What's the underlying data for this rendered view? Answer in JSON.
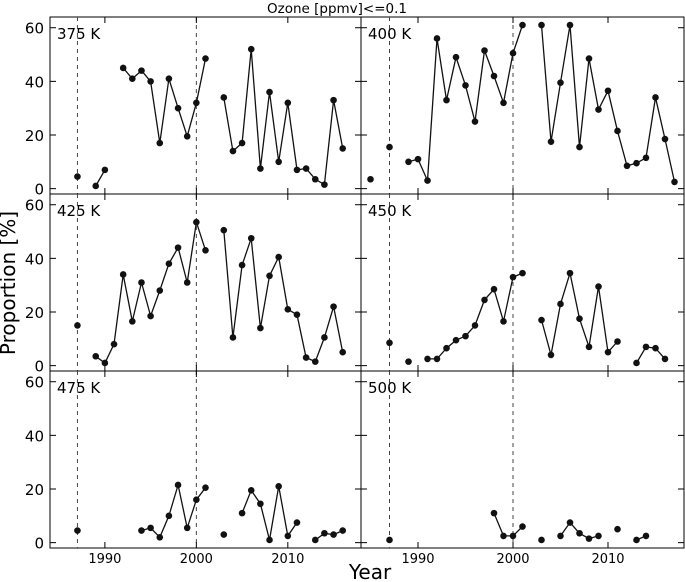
{
  "figure": {
    "title": "Ozone [ppmv]<=0.1",
    "xlabel": "Year",
    "ylabel": "Proportion [%]"
  },
  "chart_data": [
    {
      "type": "line",
      "label": "375 K",
      "xlim": [
        1984,
        2018
      ],
      "ylim": [
        -2,
        64
      ],
      "x_ticks": [
        1990,
        2000,
        2010
      ],
      "y_ticks": [
        0,
        20,
        40,
        60
      ],
      "vlines": [
        1987,
        2000
      ],
      "x": [
        1987,
        null,
        1989,
        1990,
        null,
        1992,
        1993,
        1994,
        1995,
        1996,
        1997,
        1998,
        1999,
        2000,
        2001,
        null,
        2003,
        2004,
        2005,
        2006,
        2007,
        2008,
        2009,
        2010,
        2011,
        2012,
        2013,
        2014,
        2015,
        2016
      ],
      "y": [
        4.5,
        null,
        1,
        7,
        null,
        45,
        41,
        44,
        40,
        17,
        41,
        30,
        19.5,
        32,
        48.5,
        null,
        34,
        14,
        17,
        52,
        7.5,
        36,
        10,
        32,
        7,
        7.5,
        3.5,
        1.5,
        33,
        15
      ]
    },
    {
      "type": "line",
      "label": "400 K",
      "xlim": [
        1984,
        2018
      ],
      "ylim": [
        -2,
        64
      ],
      "x_ticks": [
        1990,
        2000,
        2010
      ],
      "y_ticks": [
        0,
        20,
        40,
        60
      ],
      "vlines": [
        1987,
        2000
      ],
      "x": [
        1985,
        null,
        1987,
        null,
        1989,
        1990,
        1991,
        1992,
        1993,
        1994,
        1995,
        1996,
        1997,
        1998,
        1999,
        2000,
        2001,
        null,
        2003,
        2004,
        2005,
        2006,
        2007,
        2008,
        2009,
        2010,
        2011,
        2012,
        2013,
        2014,
        2015,
        2016,
        2017
      ],
      "y": [
        3.5,
        null,
        15.5,
        null,
        10,
        11,
        3,
        56,
        33,
        49,
        38.5,
        25,
        51.5,
        42,
        32,
        50.5,
        61,
        null,
        61,
        17.5,
        39.5,
        61,
        15.5,
        48.5,
        29.5,
        36.5,
        21.5,
        8.5,
        9.5,
        11.5,
        34,
        18.5,
        2.5
      ]
    },
    {
      "type": "line",
      "label": "425 K",
      "xlim": [
        1984,
        2018
      ],
      "ylim": [
        -2,
        64
      ],
      "x_ticks": [
        1990,
        2000,
        2010
      ],
      "y_ticks": [
        0,
        20,
        40,
        60
      ],
      "vlines": [
        1987,
        2000
      ],
      "x": [
        1987,
        null,
        1989,
        1990,
        1991,
        1992,
        1993,
        1994,
        1995,
        1996,
        1997,
        1998,
        1999,
        2000,
        2001,
        null,
        2003,
        2004,
        2005,
        2006,
        2007,
        2008,
        2009,
        2010,
        2011,
        2012,
        2013,
        2014,
        2015,
        2016
      ],
      "y": [
        15,
        null,
        3.5,
        1,
        8,
        34,
        16.5,
        31,
        18.5,
        28,
        38,
        44,
        31,
        53.5,
        43,
        null,
        50.5,
        10.5,
        37.5,
        47.5,
        14,
        33.5,
        40.5,
        21,
        19,
        3,
        1.5,
        10.5,
        22,
        5
      ]
    },
    {
      "type": "line",
      "label": "450 K",
      "xlim": [
        1984,
        2018
      ],
      "ylim": [
        -2,
        64
      ],
      "x_ticks": [
        1990,
        2000,
        2010
      ],
      "y_ticks": [
        0,
        20,
        40,
        60
      ],
      "vlines": [
        1987,
        2000
      ],
      "x": [
        1987,
        null,
        1989,
        null,
        1991,
        1992,
        1993,
        1994,
        1995,
        1996,
        1997,
        1998,
        1999,
        2000,
        2001,
        null,
        2003,
        2004,
        2005,
        2006,
        2007,
        2008,
        2009,
        2010,
        2011,
        null,
        2013,
        2014,
        2015,
        2016
      ],
      "y": [
        8.5,
        null,
        1.5,
        null,
        2.5,
        2.5,
        6.5,
        9.5,
        11,
        15,
        24.5,
        28.5,
        16.5,
        33,
        34.5,
        null,
        17,
        4,
        23,
        34.5,
        17.5,
        7,
        29.5,
        5,
        9,
        null,
        1,
        7,
        6.5,
        2.5
      ]
    },
    {
      "type": "line",
      "label": "475 K",
      "xlim": [
        1984,
        2018
      ],
      "ylim": [
        -2,
        64
      ],
      "x_ticks": [
        1990,
        2000,
        2010
      ],
      "y_ticks": [
        0,
        20,
        40,
        60
      ],
      "vlines": [
        1987,
        2000
      ],
      "x": [
        1987,
        null,
        1994,
        1995,
        1996,
        1997,
        1998,
        1999,
        2000,
        2001,
        null,
        2003,
        null,
        2005,
        2006,
        2007,
        2008,
        2009,
        2010,
        2011,
        null,
        2013,
        2014,
        2015,
        2016
      ],
      "y": [
        4.5,
        null,
        4.5,
        5.5,
        2,
        10,
        21.5,
        5.5,
        16,
        20.5,
        null,
        3,
        null,
        11,
        19.5,
        14.5,
        1,
        21,
        2.5,
        7.5,
        null,
        1,
        3.5,
        3,
        4.5
      ]
    },
    {
      "type": "line",
      "label": "500 K",
      "xlim": [
        1984,
        2018
      ],
      "ylim": [
        -2,
        64
      ],
      "x_ticks": [
        1990,
        2000,
        2010
      ],
      "y_ticks": [
        0,
        20,
        40,
        60
      ],
      "vlines": [
        1987,
        2000
      ],
      "x": [
        1987,
        null,
        1998,
        1999,
        2000,
        2001,
        null,
        2003,
        null,
        2005,
        2006,
        2007,
        2008,
        2009,
        null,
        2011,
        null,
        2013,
        2014
      ],
      "y": [
        1,
        null,
        11,
        2.5,
        2.5,
        6,
        null,
        1,
        null,
        2.5,
        7.5,
        3.5,
        1.5,
        2.5,
        null,
        5,
        null,
        1,
        2.5
      ]
    }
  ]
}
